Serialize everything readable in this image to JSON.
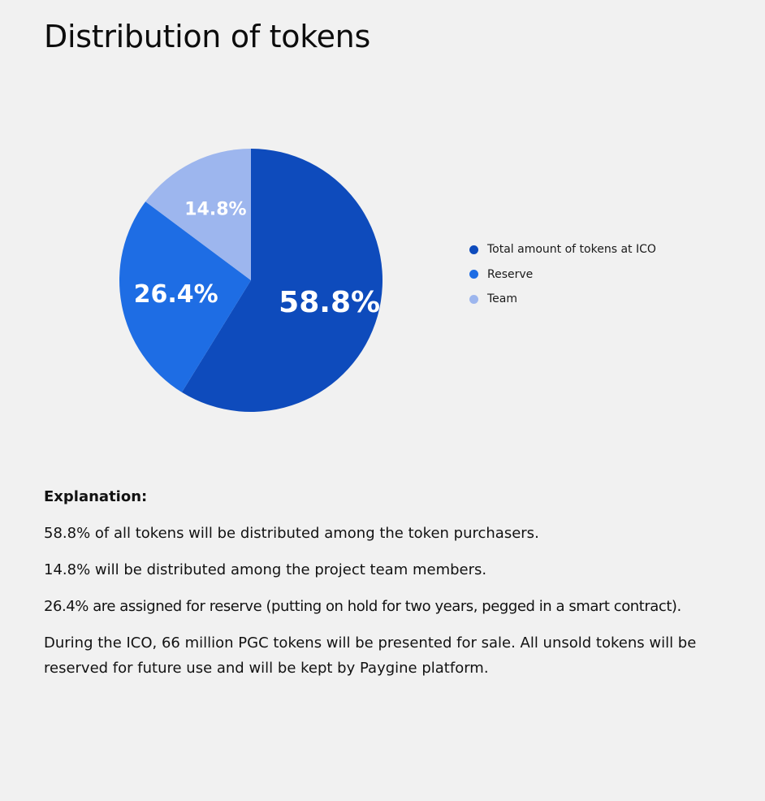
{
  "title": "Distribution of tokens",
  "colors": {
    "background": "#f1f1f1",
    "slice_ico": "#0e4bbc",
    "slice_reserve": "#1e6de4",
    "slice_team": "#9db6ee",
    "slice_label": "#ffffff"
  },
  "chart_data": {
    "type": "pie",
    "title": "",
    "slices": [
      {
        "label": "Total amount of tokens at ICO",
        "value": 58.8,
        "display": "58.8%",
        "color": "#0e4bbc"
      },
      {
        "label": "Reserve",
        "value": 26.4,
        "display": "26.4%",
        "color": "#1e6de4"
      },
      {
        "label": "Team",
        "value": 14.8,
        "display": "14.8%",
        "color": "#9db6ee"
      }
    ],
    "legend_position": "right"
  },
  "explanation": {
    "heading": "Explanation:",
    "paragraphs": [
      "58.8% of all tokens will be distributed among the token purchasers.",
      "14.8% will be distributed among the project team members.",
      "26.4% are assigned for reserve (putting on hold for two years, pegged in a smart contract).",
      "During the ICO, 66 million PGC tokens will be presented for sale. All unsold tokens will be reserved for future use and will be kept by Paygine platform."
    ]
  }
}
